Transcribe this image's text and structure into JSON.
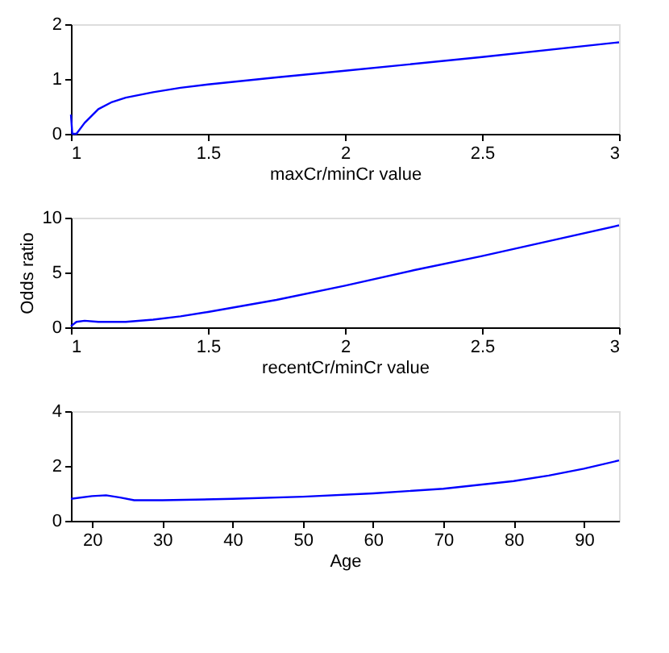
{
  "chart_data": [
    {
      "type": "line",
      "xlabel": "maxCr/minCr value",
      "x": [
        1,
        1.005,
        1.02,
        1.05,
        1.1,
        1.15,
        1.2,
        1.3,
        1.4,
        1.5,
        1.75,
        2,
        2.5,
        3
      ],
      "series": [
        {
          "color": "#0000ff",
          "values": [
            0.35,
            0,
            0,
            0.2,
            0.45,
            0.58,
            0.66,
            0.76,
            0.84,
            0.9,
            1.03,
            1.15,
            1.4,
            1.67
          ]
        }
      ],
      "xlim": [
        1,
        3
      ],
      "xticks": [
        1,
        1.5,
        2,
        2.5,
        3
      ],
      "ylim": [
        0,
        2
      ],
      "yticks": [
        0,
        1,
        2
      ],
      "grid": false
    },
    {
      "type": "line",
      "xlabel": "recentCr/minCr value",
      "ylabel": "Odds ratio",
      "x": [
        1,
        1.02,
        1.05,
        1.1,
        1.2,
        1.3,
        1.4,
        1.5,
        1.75,
        2,
        2.25,
        2.5,
        2.75,
        3
      ],
      "series": [
        {
          "color": "#0000ff",
          "values": [
            0.1,
            0.5,
            0.6,
            0.5,
            0.5,
            0.7,
            1.0,
            1.4,
            2.5,
            3.8,
            5.2,
            6.5,
            7.9,
            9.3
          ]
        }
      ],
      "xlim": [
        1,
        3
      ],
      "xticks": [
        1,
        1.5,
        2,
        2.5,
        3
      ],
      "ylim": [
        0,
        10
      ],
      "yticks": [
        0,
        5,
        10
      ],
      "grid": false
    },
    {
      "type": "line",
      "xlabel": "Age",
      "x": [
        17,
        20,
        22,
        24,
        26,
        30,
        40,
        50,
        60,
        70,
        80,
        85,
        90,
        95
      ],
      "series": [
        {
          "color": "#0000ff",
          "values": [
            0.8,
            0.9,
            0.93,
            0.85,
            0.75,
            0.75,
            0.8,
            0.88,
            1.0,
            1.17,
            1.45,
            1.65,
            1.9,
            2.2
          ]
        }
      ],
      "xlim": [
        17,
        95
      ],
      "xticks": [
        20,
        30,
        40,
        50,
        60,
        70,
        80,
        90
      ],
      "ylim": [
        0,
        4
      ],
      "yticks": [
        0,
        2,
        4
      ],
      "grid": false
    }
  ]
}
